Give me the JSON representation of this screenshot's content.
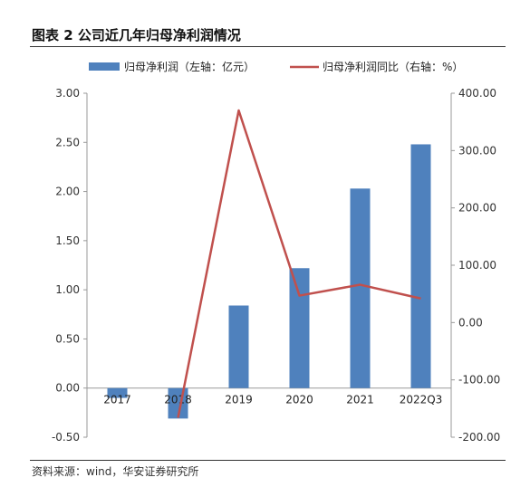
{
  "title": "图表 2 公司近几年归母净利润情况",
  "source": "资料来源：wind，华安证券研究所",
  "chart_data": {
    "type": "bar+line",
    "categories": [
      "2017",
      "2018",
      "2019",
      "2020",
      "2021",
      "2022Q3"
    ],
    "series": [
      {
        "name": "归母净利润（左轴：亿元）",
        "type": "bar",
        "axis": "left",
        "color": "#4f81bd",
        "values": [
          -0.1,
          -0.31,
          0.84,
          1.22,
          2.03,
          2.48
        ]
      },
      {
        "name": "归母净利润同比（右轴：%）",
        "type": "line",
        "axis": "right",
        "color": "#c0504d",
        "values": [
          null,
          -166.0,
          370.0,
          47.0,
          66.0,
          42.0
        ]
      }
    ],
    "left_axis": {
      "min": -0.5,
      "max": 3.0,
      "ticks": [
        3.0,
        2.5,
        2.0,
        1.5,
        1.0,
        0.5,
        0.0,
        -0.5
      ],
      "tick_labels": [
        "3.00",
        "2.50",
        "2.00",
        "1.50",
        "1.00",
        "0.50",
        "0.00",
        "-0.50"
      ]
    },
    "right_axis": {
      "min": -200,
      "max": 400,
      "ticks": [
        400,
        300,
        200,
        100,
        0,
        -100,
        -200
      ],
      "tick_labels": [
        "400.00",
        "300.00",
        "200.00",
        "100.00",
        "0.00",
        "-100.00",
        "-200.00"
      ]
    },
    "legend_position": "top",
    "grid": false
  }
}
